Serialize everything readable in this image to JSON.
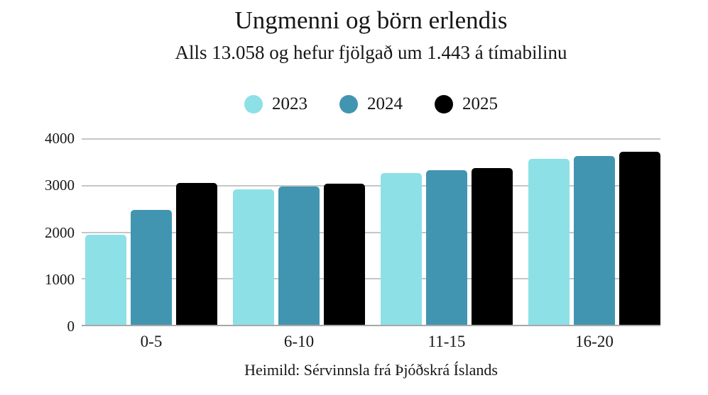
{
  "title": "Ungmenni og börn erlendis",
  "subtitle": "Alls 13.058 og hefur fjölgað um 1.443 á tímabilinu",
  "source": "Heimild: Sérvinnsla frá Þjóðskrá Íslands",
  "colors": {
    "background": "#ffffff",
    "text": "#161616",
    "gridline": "#c6c6c6",
    "axis_line": "#a8a8a8",
    "series_2023": "#8de0e6",
    "series_2024": "#4295b0",
    "series_2025": "#000000"
  },
  "chart_data": {
    "type": "bar",
    "title": "Ungmenni og börn erlendis",
    "subtitle": "Alls 13.058 og hefur fjölgað um 1.443 á tímabilinu",
    "source": "Heimild: Sérvinnsla frá Þjóðskrá Íslands",
    "categories": [
      "0-5",
      "6-10",
      "11-15",
      "16-20"
    ],
    "series": [
      {
        "name": "2023",
        "color": "#8de0e6",
        "values": [
          1920,
          2880,
          3230,
          3540
        ]
      },
      {
        "name": "2024",
        "color": "#4295b0",
        "values": [
          2450,
          2950,
          3290,
          3590
        ]
      },
      {
        "name": "2025",
        "color": "#000000",
        "values": [
          3020,
          3000,
          3340,
          3680
        ]
      }
    ],
    "ylim": [
      0,
      4000
    ],
    "yticks": [
      "4000",
      "3000",
      "2000",
      "1000",
      "0"
    ],
    "xlabel": "",
    "ylabel": "",
    "grid": "horizontal",
    "legend_position": "top-center"
  }
}
